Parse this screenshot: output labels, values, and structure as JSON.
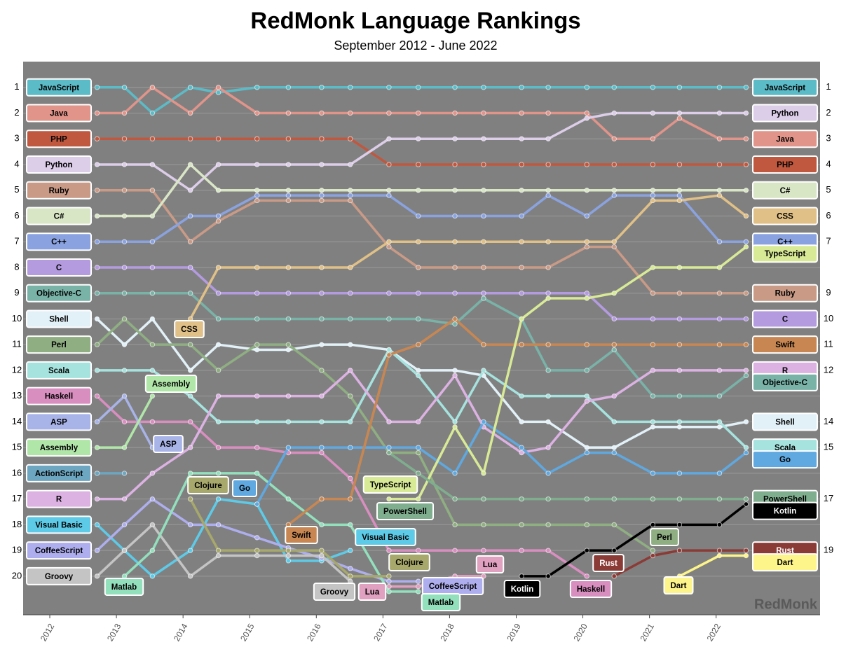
{
  "chart_data": {
    "type": "bump",
    "title": "RedMonk Language Rankings",
    "subtitle": "September 2012 - June 2022",
    "watermark": "RedMonk",
    "x": [
      2012.71,
      2013.12,
      2013.54,
      2014.11,
      2014.53,
      2015.11,
      2015.58,
      2016.08,
      2016.51,
      2017.09,
      2017.53,
      2018.08,
      2018.51,
      2019.08,
      2019.48,
      2020.06,
      2020.47,
      2021.05,
      2021.45,
      2022.05,
      2022.45
    ],
    "xlim": [
      2011.6,
      2023.56
    ],
    "xticks": [
      2012,
      2013,
      2014,
      2015,
      2016,
      2017,
      2018,
      2019,
      2020,
      2021,
      2022
    ],
    "ylim": [
      21.5,
      0
    ],
    "yticks": [
      1,
      2,
      3,
      4,
      5,
      6,
      7,
      8,
      9,
      10,
      11,
      12,
      13,
      14,
      15,
      16,
      17,
      18,
      19,
      20
    ],
    "y2lim": [
      21.5,
      0
    ],
    "y2ticks": [
      1,
      2,
      3,
      4,
      5,
      6,
      7,
      9,
      10,
      11,
      12,
      14,
      15,
      17,
      19
    ],
    "grid": true,
    "series": [
      {
        "name": "JavaScript",
        "color": "#5bbcc8",
        "values": [
          1,
          1,
          2,
          1,
          1.2,
          1,
          1,
          1,
          1,
          1,
          1,
          1,
          1,
          1,
          1,
          1,
          1,
          1,
          1,
          1,
          1
        ]
      },
      {
        "name": "Java",
        "color": "#e0948a",
        "values": [
          2,
          2,
          1,
          2,
          1,
          2,
          2,
          2,
          2,
          2,
          2,
          2,
          2,
          2,
          2,
          2,
          3,
          3,
          2.2,
          3,
          3
        ]
      },
      {
        "name": "PHP",
        "color": "#c0583f",
        "values": [
          3,
          3,
          3,
          3,
          3,
          3,
          3,
          3,
          3,
          4,
          4,
          4,
          4,
          4,
          4,
          4,
          4,
          4,
          4,
          4,
          4
        ]
      },
      {
        "name": "Python",
        "color": "#dccde8",
        "values": [
          4,
          4,
          4,
          5,
          4,
          4,
          4,
          4,
          4,
          3,
          3,
          3,
          3,
          3,
          3,
          2.2,
          2,
          2,
          2,
          2,
          2
        ]
      },
      {
        "name": "Ruby",
        "color": "#c99a86",
        "values": [
          5,
          5,
          5,
          7,
          6.2,
          5.4,
          5.4,
          5.4,
          5.4,
          7.2,
          8,
          8,
          8,
          8,
          8,
          7.2,
          7.2,
          9,
          9,
          9,
          9
        ]
      },
      {
        "name": "C#",
        "color": "#d9e6c6",
        "values": [
          6,
          6,
          6,
          4,
          5,
          5,
          5,
          5,
          5,
          5,
          5,
          5,
          5,
          5,
          5,
          5,
          5,
          5,
          5,
          5,
          5
        ]
      },
      {
        "name": "C++",
        "color": "#8aa3e0",
        "values": [
          7,
          7,
          7,
          6,
          6,
          5.2,
          5.2,
          5.2,
          5.2,
          5.2,
          6,
          6,
          6,
          6,
          5.2,
          6,
          5.2,
          5.2,
          5.2,
          7,
          7
        ]
      },
      {
        "name": "C",
        "color": "#b49be0",
        "values": [
          8,
          8,
          8,
          8,
          9,
          9,
          9,
          9,
          9,
          9,
          9,
          9,
          9,
          9,
          9,
          9,
          10,
          10,
          10,
          10,
          10
        ]
      },
      {
        "name": "Objective-C",
        "color": "#79b3a8",
        "values": [
          9,
          9,
          9,
          9,
          10,
          10,
          10,
          10,
          10,
          10,
          10,
          10.2,
          9.2,
          10,
          12,
          12,
          11.2,
          13,
          13,
          13,
          12.2
        ]
      },
      {
        "name": "Shell",
        "color": "#e2f1f8",
        "values": [
          10,
          11,
          10,
          12,
          11,
          11.2,
          11.2,
          11,
          11,
          11.2,
          12,
          12,
          12.2,
          14,
          14,
          15,
          15,
          14.2,
          14.2,
          14.2,
          14
        ]
      },
      {
        "name": "Perl",
        "color": "#8fae82",
        "values": [
          11,
          10,
          11,
          11,
          12,
          11,
          11,
          12,
          13,
          15.2,
          15.2,
          18,
          18,
          18,
          18,
          18,
          18,
          19,
          null,
          null,
          null
        ]
      },
      {
        "name": "Scala",
        "color": "#a6e3de",
        "values": [
          12,
          12,
          12,
          13,
          14,
          14,
          14,
          14,
          14,
          11.2,
          12.2,
          14,
          12,
          13,
          13,
          13,
          14,
          14,
          14,
          14,
          15
        ]
      },
      {
        "name": "Haskell",
        "color": "#d98ec0",
        "values": [
          13,
          14,
          14,
          14,
          15,
          15,
          15.2,
          15.2,
          16.2,
          19,
          19,
          19,
          19,
          19,
          19,
          20,
          null,
          null,
          null,
          null,
          null
        ]
      },
      {
        "name": "ASP",
        "color": "#a8b3e8",
        "values": [
          14,
          13,
          15,
          null,
          null,
          null,
          null,
          null,
          null,
          null,
          null,
          null,
          null,
          null,
          null,
          null,
          null,
          null,
          null,
          null,
          null
        ]
      },
      {
        "name": "Assembly",
        "color": "#b1e6a9",
        "values": [
          15,
          15,
          13,
          null,
          null,
          null,
          null,
          null,
          null,
          null,
          null,
          null,
          null,
          null,
          null,
          null,
          null,
          null,
          null,
          null,
          null
        ]
      },
      {
        "name": "ActionScript",
        "color": "#6ca6c0",
        "values": [
          16,
          16,
          null,
          null,
          null,
          null,
          null,
          null,
          null,
          null,
          null,
          null,
          null,
          null,
          null,
          null,
          null,
          null,
          null,
          null,
          null
        ]
      },
      {
        "name": "R",
        "color": "#dcb2e3",
        "values": [
          17,
          17,
          16,
          15,
          13,
          13,
          13,
          13,
          12,
          14,
          14,
          12.2,
          14.2,
          15.2,
          15,
          13.2,
          13,
          12,
          12,
          12,
          12
        ]
      },
      {
        "name": "Visual Basic",
        "color": "#5dcbe8",
        "values": [
          18,
          19,
          20,
          19,
          17,
          17.2,
          19.4,
          19.4,
          19,
          null,
          null,
          null,
          null,
          null,
          null,
          null,
          null,
          null,
          null,
          null,
          null
        ]
      },
      {
        "name": "CoffeeScript",
        "color": "#aeaeee",
        "values": [
          19,
          18,
          17,
          18,
          18,
          18.5,
          18.9,
          19.3,
          19.7,
          20.2,
          20.2,
          null,
          null,
          null,
          null,
          null,
          null,
          null,
          null,
          null,
          null
        ]
      },
      {
        "name": "Groovy",
        "color": "#c4c4c4",
        "values": [
          20,
          19,
          18,
          20,
          19.2,
          19.2,
          19.2,
          19.2,
          20.2,
          null,
          null,
          null,
          null,
          null,
          null,
          null,
          null,
          null,
          null,
          null,
          null
        ]
      },
      {
        "name": "CSS",
        "color": "#e0c087",
        "values": [
          null,
          null,
          null,
          10,
          8,
          8,
          8,
          8,
          8,
          7,
          7,
          7,
          7,
          7,
          7,
          7,
          7,
          5.4,
          5.4,
          5.2,
          6
        ]
      },
      {
        "name": "Matlab",
        "color": "#93e0bd",
        "values": [
          null,
          20,
          19,
          16,
          16,
          16,
          17,
          18,
          18,
          20.6,
          20.6,
          null,
          null,
          null,
          null,
          null,
          null,
          null,
          null,
          null,
          null
        ]
      },
      {
        "name": "Clojure",
        "color": "#a7a86b",
        "values": [
          null,
          null,
          null,
          17,
          19,
          19,
          19,
          19,
          20,
          20,
          null,
          null,
          null,
          null,
          null,
          null,
          null,
          null,
          null,
          null,
          null
        ]
      },
      {
        "name": "Go",
        "color": "#5fa8e0",
        "values": [
          null,
          null,
          null,
          null,
          null,
          17.2,
          15,
          15,
          15,
          15,
          15,
          16,
          14,
          15,
          16,
          15.2,
          15.2,
          16,
          16,
          16,
          15.2
        ]
      },
      {
        "name": "Swift",
        "color": "#c88752",
        "values": [
          null,
          null,
          null,
          null,
          null,
          null,
          18,
          17,
          17,
          11.4,
          11,
          10,
          11,
          11,
          11,
          11,
          11,
          11,
          11,
          11,
          11
        ]
      },
      {
        "name": "TypeScript",
        "color": "#d8ea96",
        "values": [
          null,
          null,
          null,
          null,
          null,
          null,
          null,
          null,
          null,
          17,
          17,
          14.2,
          16,
          10,
          9.2,
          9.2,
          9,
          8,
          8,
          8,
          7.2
        ]
      },
      {
        "name": "PowerShell",
        "color": "#7fae8e",
        "values": [
          null,
          null,
          null,
          null,
          null,
          null,
          null,
          null,
          null,
          15.2,
          16,
          17,
          17,
          17,
          17,
          17,
          17,
          17,
          17,
          17,
          17
        ]
      },
      {
        "name": "Lua",
        "color": "#e0a0c0",
        "values": [
          null,
          null,
          null,
          null,
          null,
          null,
          null,
          null,
          null,
          20.4,
          20.4,
          20,
          20,
          null,
          null,
          null,
          null,
          null,
          null,
          null,
          null
        ]
      },
      {
        "name": "Kotlin",
        "color": "#000000",
        "values": [
          null,
          null,
          null,
          null,
          null,
          null,
          null,
          null,
          null,
          null,
          null,
          null,
          null,
          20,
          20,
          19,
          19,
          18,
          18,
          18,
          17.2
        ]
      },
      {
        "name": "Rust",
        "color": "#8b3b36",
        "values": [
          null,
          null,
          null,
          null,
          null,
          null,
          null,
          null,
          null,
          null,
          null,
          null,
          null,
          null,
          null,
          null,
          20,
          19.2,
          19,
          19,
          19
        ]
      },
      {
        "name": "Dart",
        "color": "#fdf48a",
        "values": [
          null,
          null,
          null,
          null,
          null,
          null,
          null,
          null,
          null,
          null,
          null,
          null,
          null,
          null,
          null,
          null,
          null,
          null,
          20,
          19.2,
          19.2
        ]
      }
    ]
  }
}
